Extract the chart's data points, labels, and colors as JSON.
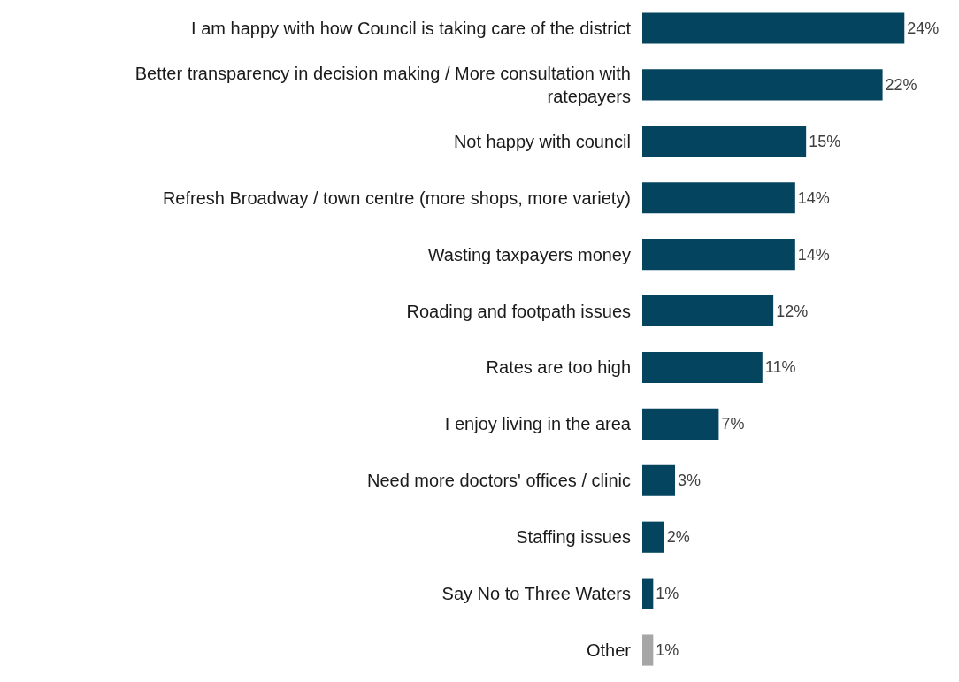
{
  "chart_data": {
    "type": "bar",
    "orientation": "horizontal",
    "tick_labels": "y",
    "xlim": [
      0,
      29
    ],
    "categories": [
      "I am happy with how Council is taking care of the district",
      "Better transparency in decision making / More consultation with ratepayers",
      "Not happy with council",
      "Refresh Broadway / town centre (more shops, more variety)",
      "Wasting taxpayers money",
      "Roading and footpath issues",
      "Rates are too high",
      "I enjoy living in the area",
      "Need more doctors' offices / clinic",
      "Staffing issues",
      "Say No to Three Waters",
      "Other"
    ],
    "values": [
      24,
      22,
      15,
      14,
      14,
      12,
      11,
      7,
      3,
      2,
      1,
      1
    ],
    "value_labels": [
      "24%",
      "22%",
      "15%",
      "14%",
      "14%",
      "12%",
      "11%",
      "7%",
      "3%",
      "2%",
      "1%",
      "1%"
    ],
    "colors": [
      "#05445e",
      "#05445e",
      "#05445e",
      "#05445e",
      "#05445e",
      "#05445e",
      "#05445e",
      "#05445e",
      "#05445e",
      "#05445e",
      "#05445e",
      "#a6a6a6"
    ]
  }
}
